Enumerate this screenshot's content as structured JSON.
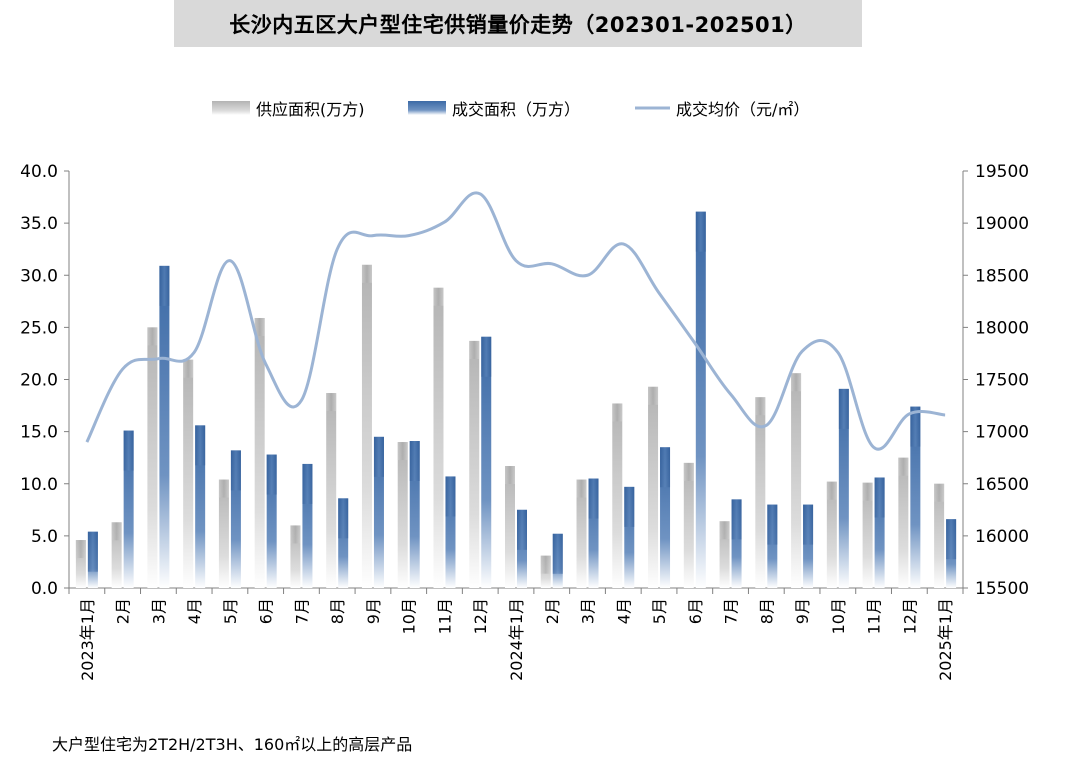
{
  "title": "长沙内五区大户型住宅供销量价走势（202301-202501）",
  "footnote": "大户型住宅为2T2H/2T3H、160㎡以上的高层产品",
  "chart_data": {
    "type": "bar",
    "categories": [
      "2023年1月",
      "2月",
      "3月",
      "4月",
      "5月",
      "6月",
      "7月",
      "8月",
      "9月",
      "10月",
      "11月",
      "12月",
      "2024年1月",
      "2月",
      "3月",
      "4月",
      "5月",
      "6月",
      "7月",
      "8月",
      "9月",
      "10月",
      "11月",
      "12月",
      "2025年1月"
    ],
    "series": [
      {
        "name": "供应面积(万方)",
        "type": "bar",
        "axis": "left",
        "color": "#bfbfbf",
        "values": [
          4.6,
          6.3,
          25.0,
          21.9,
          10.4,
          25.9,
          6.0,
          18.7,
          31.0,
          14.0,
          28.8,
          23.7,
          11.7,
          3.1,
          10.4,
          17.7,
          19.3,
          12.0,
          6.4,
          18.3,
          20.6,
          10.2,
          10.1,
          12.5,
          10.0
        ]
      },
      {
        "name": "成交面积（万方）",
        "type": "bar",
        "axis": "left",
        "color": "#3c6aa6",
        "values": [
          5.4,
          15.1,
          30.9,
          15.6,
          13.2,
          12.8,
          11.9,
          8.6,
          14.5,
          14.1,
          10.7,
          24.1,
          7.5,
          5.2,
          10.5,
          9.7,
          13.5,
          36.1,
          8.5,
          8.0,
          8.0,
          19.1,
          10.6,
          17.4,
          6.6
        ]
      },
      {
        "name": "成交均价（元/㎡）",
        "type": "line",
        "axis": "right",
        "color": "#9cb4d4",
        "values": [
          16900,
          17600,
          17700,
          17760,
          18640,
          17650,
          17300,
          18750,
          18880,
          18880,
          19010,
          19280,
          18640,
          18610,
          18500,
          18800,
          18330,
          17850,
          17360,
          17060,
          17770,
          17760,
          16850,
          17170,
          17160
        ]
      }
    ],
    "y_left": {
      "min": 0,
      "max": 40,
      "step": 5,
      "ticks": [
        "0.0",
        "5.0",
        "10.0",
        "15.0",
        "20.0",
        "25.0",
        "30.0",
        "35.0",
        "40.0"
      ]
    },
    "y_right": {
      "min": 15500,
      "max": 19500,
      "step": 500,
      "ticks": [
        "15500",
        "16000",
        "16500",
        "17000",
        "17500",
        "18000",
        "18500",
        "19000",
        "19500"
      ]
    },
    "legend_position": "top",
    "grid": false
  }
}
